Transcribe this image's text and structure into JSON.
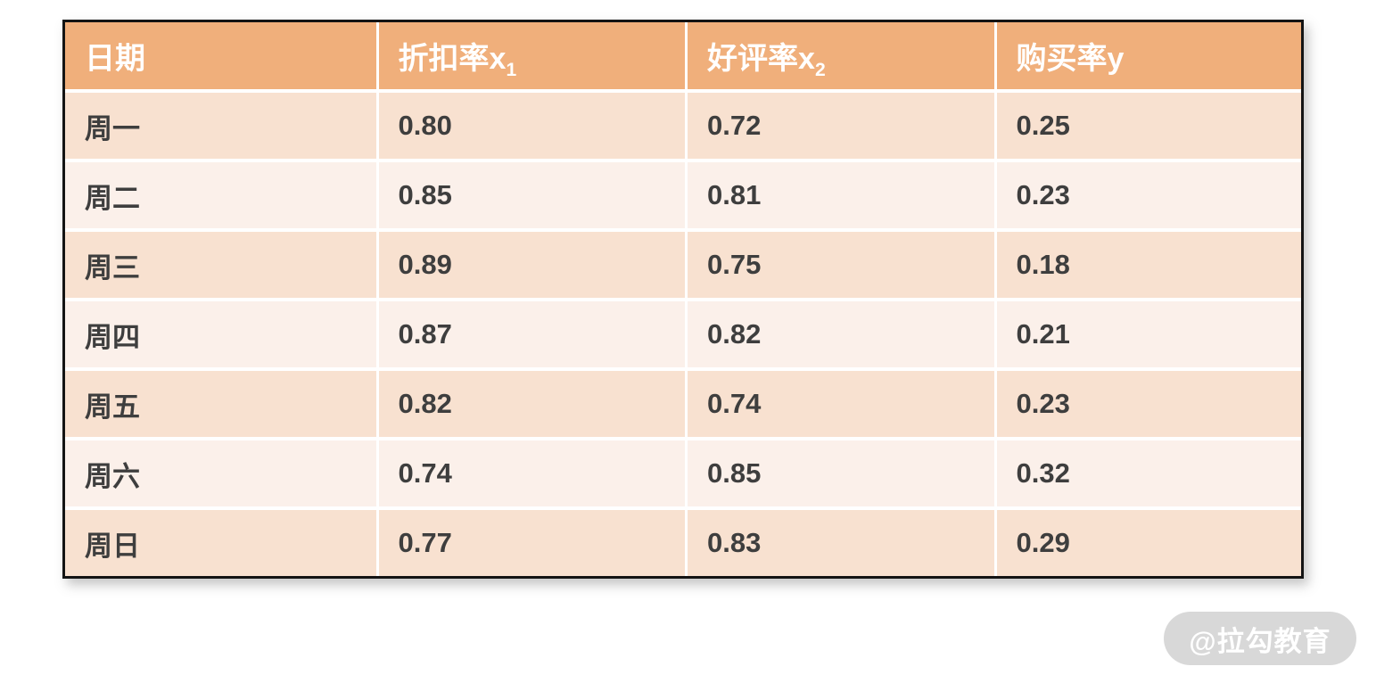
{
  "table": {
    "columns": [
      {
        "label": "日期",
        "sub": ""
      },
      {
        "label": "折扣率x",
        "sub": "1"
      },
      {
        "label": "好评率x",
        "sub": "2"
      },
      {
        "label": "购买率y",
        "sub": ""
      }
    ],
    "rows": [
      {
        "day": "周一",
        "x1": "0.80",
        "x2": "0.72",
        "y": "0.25"
      },
      {
        "day": "周二",
        "x1": "0.85",
        "x2": "0.81",
        "y": "0.23"
      },
      {
        "day": "周三",
        "x1": "0.89",
        "x2": "0.75",
        "y": "0.18"
      },
      {
        "day": "周四",
        "x1": "0.87",
        "x2": "0.82",
        "y": "0.21"
      },
      {
        "day": "周五",
        "x1": "0.82",
        "x2": "0.74",
        "y": "0.23"
      },
      {
        "day": "周六",
        "x1": "0.74",
        "x2": "0.85",
        "y": "0.32"
      },
      {
        "day": "周日",
        "x1": "0.77",
        "x2": "0.83",
        "y": "0.29"
      }
    ]
  },
  "watermark": {
    "text": "@拉勾教育"
  },
  "colors": {
    "header_bg": "#F0AF7B",
    "row_odd_bg": "#F8E1D0",
    "row_even_bg": "#FBF0EA",
    "header_text": "#FFFFFF",
    "cell_text": "#3E3E3E",
    "outer_border": "#141414",
    "watermark_bg": "#D8D8D8",
    "watermark_text": "#FFFFFF"
  },
  "chart_data": {
    "type": "table",
    "title": "",
    "columns": [
      "日期",
      "折扣率x₁",
      "好评率x₂",
      "购买率y"
    ],
    "rows": [
      [
        "周一",
        0.8,
        0.72,
        0.25
      ],
      [
        "周二",
        0.85,
        0.81,
        0.23
      ],
      [
        "周三",
        0.89,
        0.75,
        0.18
      ],
      [
        "周四",
        0.87,
        0.82,
        0.21
      ],
      [
        "周五",
        0.82,
        0.74,
        0.23
      ],
      [
        "周六",
        0.74,
        0.85,
        0.32
      ],
      [
        "周日",
        0.77,
        0.83,
        0.29
      ]
    ]
  }
}
